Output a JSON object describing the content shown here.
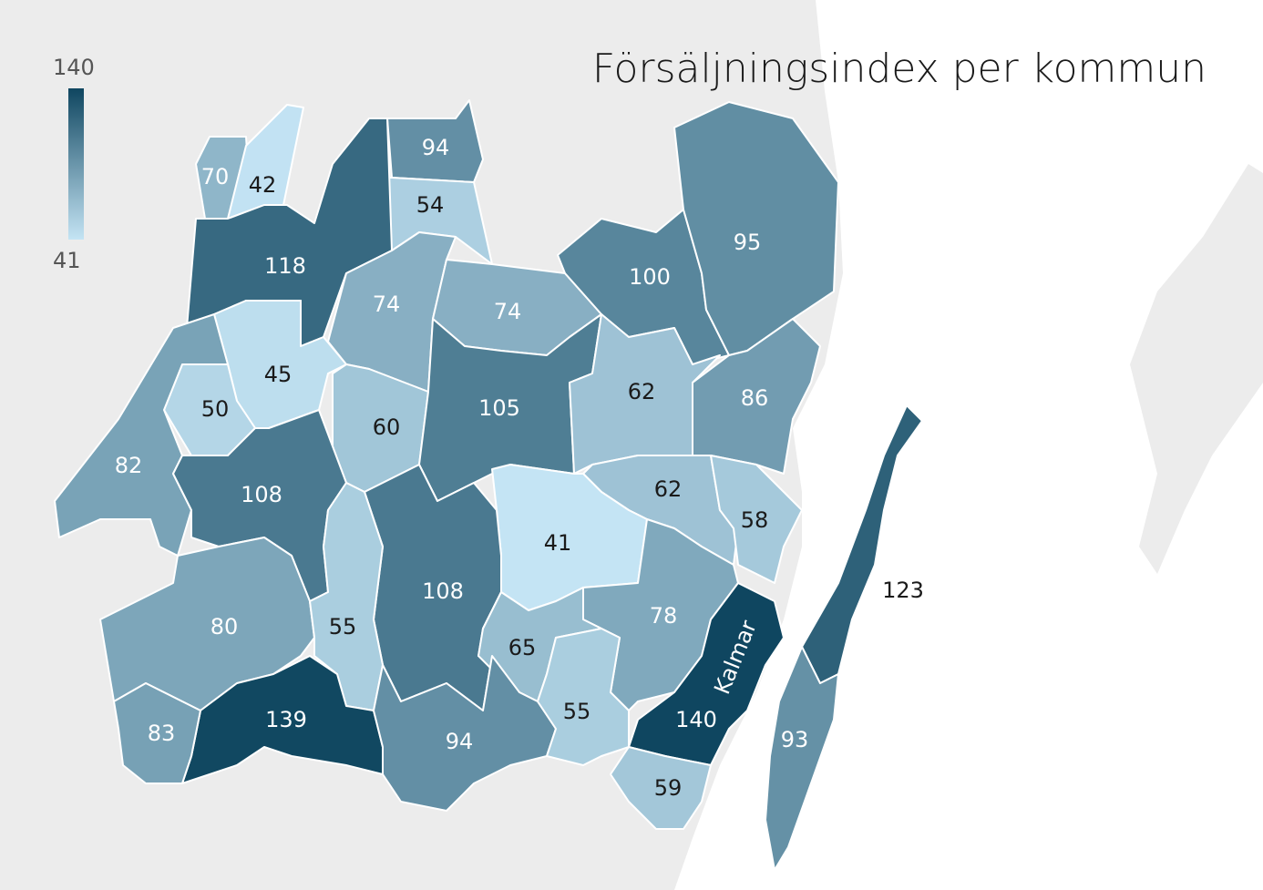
{
  "title": "Försäljningsindex per kommun",
  "legend": {
    "max": "140",
    "min": "41",
    "color_max": "#0f4660",
    "color_min": "#c4e4f4"
  },
  "colors": {
    "land": "#ececec",
    "sea": "#ffffff",
    "border": "#ffffff",
    "text_dark": "#1a1a1a",
    "text_light": "#ffffff"
  },
  "regions": [
    {
      "value": 70
    },
    {
      "value": 42
    },
    {
      "value": 94
    },
    {
      "value": 54
    },
    {
      "value": 118
    },
    {
      "value": 74
    },
    {
      "value": 74
    },
    {
      "value": 100
    },
    {
      "value": 95
    },
    {
      "value": 45
    },
    {
      "value": 50
    },
    {
      "value": 60
    },
    {
      "value": 105
    },
    {
      "value": 62
    },
    {
      "value": 86
    },
    {
      "value": 82
    },
    {
      "value": 108
    },
    {
      "value": 62
    },
    {
      "value": 58
    },
    {
      "value": 41
    },
    {
      "value": 108
    },
    {
      "value": 123
    },
    {
      "value": 80
    },
    {
      "value": 55
    },
    {
      "value": 78
    },
    {
      "value": 65
    },
    {
      "value": 140,
      "name": "Kalmar"
    },
    {
      "value": 139
    },
    {
      "value": 83
    },
    {
      "value": 94
    },
    {
      "value": 55
    },
    {
      "value": 93
    },
    {
      "value": 59
    }
  ]
}
